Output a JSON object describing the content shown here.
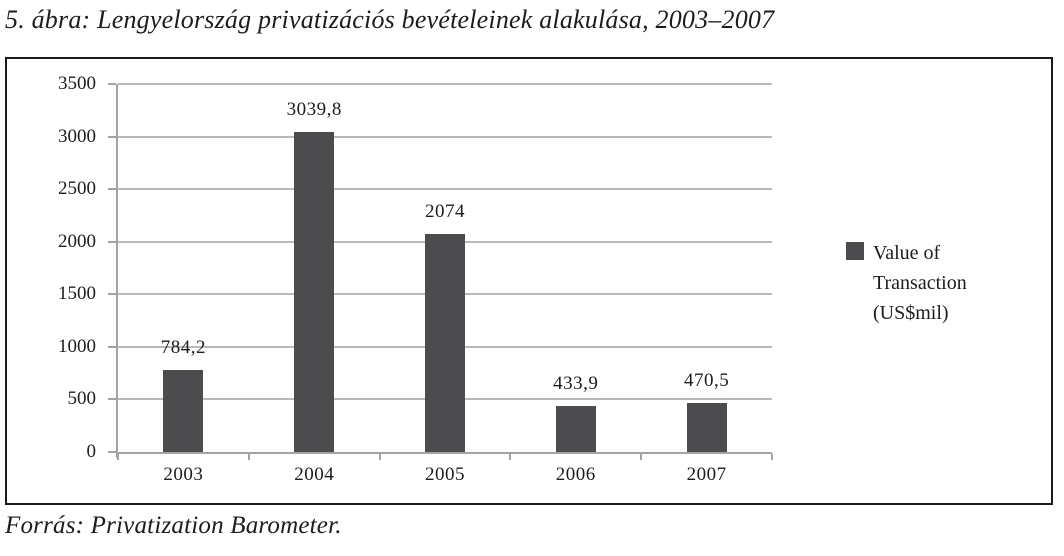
{
  "figure": {
    "title": "5. ábra: Lengyelország privatizációs bevételeinek alakulása, 2003–2007",
    "source": "Forrás: Privatization Barometer."
  },
  "chart_data": {
    "type": "bar",
    "categories": [
      "2003",
      "2004",
      "2005",
      "2006",
      "2007"
    ],
    "values": [
      784.2,
      3039.8,
      2074,
      433.9,
      470.5
    ],
    "value_labels": [
      "784,2",
      "3039,8",
      "2074",
      "433,9",
      "470,5"
    ],
    "series_name": "Value of Transaction (US$mil)",
    "legend": [
      "Value of Transaction (US$mil)"
    ],
    "legend_position": "right",
    "xlabel": "",
    "ylabel": "",
    "ylim": [
      0,
      3500
    ],
    "yticks": [
      0,
      500,
      1000,
      1500,
      2000,
      2500,
      3000,
      3500
    ],
    "grid": true,
    "bar_color": "#4c4c4e",
    "gridline_color": "#b9b9b9",
    "axis_color": "#a3a3a5",
    "text_color": "#1c1c1c"
  }
}
